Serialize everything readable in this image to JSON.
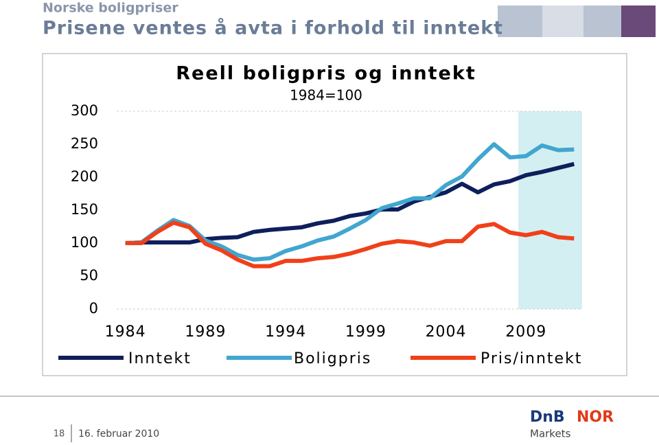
{
  "header": {
    "kicker": "Norske boligpriser",
    "title": "Prisene ventes å avta i forhold til inntekt"
  },
  "chart_data": {
    "type": "line",
    "title": "Reell boligpris og inntekt",
    "subtitle": "1984=100",
    "x": [
      1984,
      1985,
      1986,
      1987,
      1988,
      1989,
      1990,
      1991,
      1992,
      1993,
      1994,
      1995,
      1996,
      1997,
      1998,
      1999,
      2000,
      2001,
      2002,
      2003,
      2004,
      2005,
      2006,
      2007,
      2008,
      2009,
      2010,
      2011,
      2012
    ],
    "series": [
      {
        "name": "Inntekt",
        "color": "#0f1f5c",
        "values": [
          100,
          101,
          101,
          101,
          101,
          106,
          108,
          109,
          117,
          120,
          122,
          124,
          130,
          134,
          141,
          145,
          151,
          151,
          163,
          170,
          177,
          190,
          177,
          189,
          194,
          203,
          208,
          214,
          220
        ]
      },
      {
        "name": "Boligpris",
        "color": "#41a6d0",
        "values": [
          100,
          101,
          119,
          135,
          126,
          104,
          95,
          82,
          75,
          77,
          88,
          95,
          104,
          110,
          122,
          135,
          153,
          160,
          168,
          168,
          188,
          201,
          227,
          250,
          230,
          232,
          248,
          241,
          242
        ]
      },
      {
        "name": "Pris/inntekt",
        "color": "#f0401a",
        "values": [
          100,
          100,
          117,
          131,
          124,
          99,
          89,
          75,
          65,
          65,
          73,
          73,
          77,
          79,
          84,
          91,
          99,
          103,
          101,
          96,
          103,
          103,
          125,
          129,
          116,
          112,
          117,
          109,
          107
        ]
      }
    ],
    "xlim": [
      1983.2,
      2012.5
    ],
    "xticks": [
      1984,
      1989,
      1994,
      1999,
      2004,
      2009
    ],
    "ylim": [
      0,
      300
    ],
    "yticks": [
      0,
      50,
      100,
      150,
      200,
      250,
      300
    ],
    "grid": false
  },
  "footer": {
    "page": "18",
    "date": "16. februar 2010",
    "logo_main": "DnB",
    "logo_second": "NOR",
    "logo_sub": "Markets"
  }
}
